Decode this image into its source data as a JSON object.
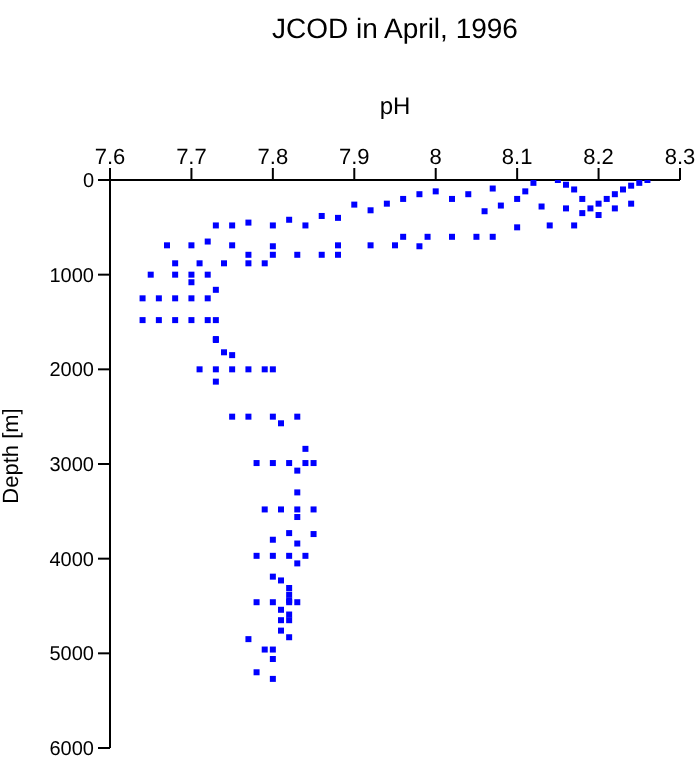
{
  "chart_data": {
    "type": "scatter",
    "title": "JCOD in April, 1996",
    "xlabel": "pH",
    "ylabel": "Depth [m]",
    "xlim": [
      7.6,
      8.3
    ],
    "xticks": [
      7.6,
      7.7,
      7.8,
      7.9,
      8,
      8.1,
      8.2,
      8.3
    ],
    "ylim": [
      6000,
      0
    ],
    "yticks": [
      0,
      1000,
      2000,
      3000,
      4000,
      5000,
      6000
    ],
    "grid": false,
    "legend": false,
    "marker": "square",
    "series": [
      {
        "color": "#0000ff",
        "x": [
          8.26,
          8.25,
          8.24,
          8.23,
          8.22,
          8.21,
          8.2,
          8.19,
          8.18,
          8.17,
          8.16,
          8.15,
          8.16,
          8.18,
          8.2,
          8.22,
          8.24,
          8.13,
          8.12,
          8.11,
          8.1,
          8.08,
          8.07,
          8.06,
          8.04,
          8.02,
          8.0,
          7.98,
          7.96,
          7.94,
          7.92,
          7.9,
          7.88,
          7.86,
          7.84,
          7.82,
          7.8,
          7.77,
          7.75,
          7.73,
          7.96,
          7.99,
          8.02,
          8.05,
          8.07,
          8.1,
          8.14,
          8.17,
          7.67,
          7.7,
          7.72,
          7.75,
          7.8,
          7.88,
          7.92,
          7.95,
          7.98,
          7.77,
          7.8,
          7.83,
          7.86,
          7.88,
          7.68,
          7.71,
          7.74,
          7.77,
          7.79,
          7.65,
          7.68,
          7.7,
          7.72,
          7.7,
          7.64,
          7.66,
          7.68,
          7.7,
          7.72,
          7.73,
          7.64,
          7.66,
          7.68,
          7.7,
          7.72,
          7.73,
          7.73,
          7.74,
          7.71,
          7.73,
          7.75,
          7.77,
          7.79,
          7.8,
          7.73,
          7.75,
          7.73,
          7.75,
          7.77,
          7.8,
          7.81,
          7.83,
          7.84,
          7.78,
          7.8,
          7.82,
          7.84,
          7.85,
          7.83,
          7.83,
          7.79,
          7.81,
          7.83,
          7.85,
          7.83,
          7.82,
          7.85,
          7.8,
          7.83,
          7.78,
          7.8,
          7.82,
          7.84,
          7.83,
          7.8,
          7.81,
          7.82,
          7.82,
          7.82,
          7.78,
          7.8,
          7.82,
          7.83,
          7.81,
          7.82,
          7.81,
          7.82,
          7.81,
          7.82,
          7.77,
          7.79,
          7.8,
          7.8,
          7.78,
          7.8
        ],
        "values": [
          0,
          30,
          60,
          100,
          150,
          200,
          250,
          300,
          200,
          100,
          50,
          0,
          300,
          350,
          370,
          300,
          250,
          280,
          30,
          120,
          200,
          270,
          90,
          330,
          150,
          200,
          120,
          150,
          200,
          250,
          320,
          260,
          400,
          380,
          480,
          420,
          480,
          450,
          480,
          480,
          600,
          600,
          600,
          600,
          600,
          500,
          480,
          480,
          690,
          690,
          650,
          690,
          700,
          690,
          690,
          690,
          700,
          790,
          790,
          790,
          790,
          790,
          880,
          880,
          880,
          880,
          880,
          1000,
          1000,
          1000,
          1000,
          1080,
          1250,
          1250,
          1250,
          1250,
          1250,
          1160,
          1480,
          1480,
          1480,
          1480,
          1480,
          1480,
          1680,
          1820,
          2000,
          2000,
          2000,
          2000,
          2000,
          2000,
          1690,
          1850,
          2130,
          2500,
          2500,
          2500,
          2570,
          2500,
          2840,
          2990,
          2990,
          2990,
          2990,
          2990,
          3070,
          3300,
          3480,
          3480,
          3480,
          3480,
          3560,
          3730,
          3740,
          3800,
          3840,
          3970,
          3970,
          3970,
          3970,
          4050,
          4190,
          4230,
          4310,
          4380,
          4440,
          4460,
          4460,
          4460,
          4460,
          4540,
          4590,
          4650,
          4650,
          4760,
          4830,
          4850,
          4960,
          4960,
          5060,
          5200,
          5270
        ]
      }
    ]
  }
}
